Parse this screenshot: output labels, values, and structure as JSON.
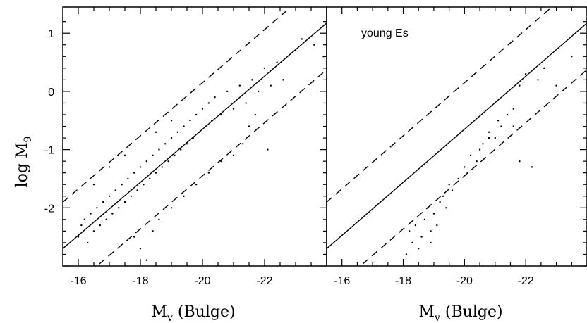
{
  "chart_data": [
    {
      "type": "scatter",
      "panel": "left",
      "xlabel_main": "M",
      "xlabel_sub": "v",
      "xlabel_suffix": " (Bulge)",
      "ylabel_main": "log  M",
      "ylabel_sub": "9",
      "xlim": [
        -15.5,
        -24.0
      ],
      "ylim": [
        -3.0,
        1.45
      ],
      "x_ticks": [
        -16,
        -18,
        -20,
        -22
      ],
      "x_tick_labels": [
        "-16",
        "-18",
        "-20",
        "-22"
      ],
      "y_ticks": [
        1,
        0,
        -1,
        -2
      ],
      "y_tick_labels": [
        "1",
        "0",
        "-1",
        "-2"
      ],
      "fit_line": {
        "slope": -0.456,
        "intercept": -9.77
      },
      "envelope_offset": 0.8,
      "series": [
        {
          "values": [
            {
              "x": -16.0,
              "y": -2.5
            },
            {
              "x": -16.1,
              "y": -2.3
            },
            {
              "x": -16.2,
              "y": -2.2
            },
            {
              "x": -16.3,
              "y": -2.6
            },
            {
              "x": -16.4,
              "y": -2.1
            },
            {
              "x": -16.5,
              "y": -2.4
            },
            {
              "x": -16.6,
              "y": -2.0
            },
            {
              "x": -16.7,
              "y": -2.3
            },
            {
              "x": -16.8,
              "y": -1.9
            },
            {
              "x": -16.9,
              "y": -2.2
            },
            {
              "x": -17.0,
              "y": -1.8
            },
            {
              "x": -17.1,
              "y": -2.1
            },
            {
              "x": -17.2,
              "y": -1.7
            },
            {
              "x": -17.3,
              "y": -2.0
            },
            {
              "x": -17.4,
              "y": -1.6
            },
            {
              "x": -17.5,
              "y": -1.9
            },
            {
              "x": -17.6,
              "y": -1.5
            },
            {
              "x": -17.7,
              "y": -1.8
            },
            {
              "x": -17.8,
              "y": -1.4
            },
            {
              "x": -17.9,
              "y": -1.7
            },
            {
              "x": -18.0,
              "y": -1.3
            },
            {
              "x": -18.1,
              "y": -1.6
            },
            {
              "x": -18.2,
              "y": -1.2
            },
            {
              "x": -18.3,
              "y": -1.5
            },
            {
              "x": -18.4,
              "y": -1.1
            },
            {
              "x": -18.5,
              "y": -1.4
            },
            {
              "x": -18.6,
              "y": -1.0
            },
            {
              "x": -18.7,
              "y": -1.3
            },
            {
              "x": -18.8,
              "y": -0.9
            },
            {
              "x": -18.9,
              "y": -1.2
            },
            {
              "x": -19.0,
              "y": -0.8
            },
            {
              "x": -19.1,
              "y": -1.1
            },
            {
              "x": -19.2,
              "y": -0.7
            },
            {
              "x": -19.3,
              "y": -1.0
            },
            {
              "x": -19.4,
              "y": -0.6
            },
            {
              "x": -19.5,
              "y": -0.9
            },
            {
              "x": -19.6,
              "y": -0.5
            },
            {
              "x": -19.7,
              "y": -0.8
            },
            {
              "x": -19.8,
              "y": -0.4
            },
            {
              "x": -19.9,
              "y": -0.7
            },
            {
              "x": -20.0,
              "y": -0.3
            },
            {
              "x": -20.1,
              "y": -0.6
            },
            {
              "x": -20.2,
              "y": -0.2
            },
            {
              "x": -20.3,
              "y": -0.5
            },
            {
              "x": -20.4,
              "y": -0.1
            },
            {
              "x": -20.6,
              "y": -0.4
            },
            {
              "x": -20.8,
              "y": 0.0
            },
            {
              "x": -21.0,
              "y": -0.3
            },
            {
              "x": -21.2,
              "y": 0.1
            },
            {
              "x": -21.4,
              "y": -0.2
            },
            {
              "x": -21.6,
              "y": 0.2
            },
            {
              "x": -21.8,
              "y": 0.0
            },
            {
              "x": -22.0,
              "y": 0.4
            },
            {
              "x": -22.2,
              "y": 0.1
            },
            {
              "x": -22.4,
              "y": 0.5
            },
            {
              "x": -22.6,
              "y": 0.2
            },
            {
              "x": -23.0,
              "y": 0.7
            },
            {
              "x": -23.2,
              "y": 0.9
            },
            {
              "x": -23.6,
              "y": 0.8
            },
            {
              "x": -23.9,
              "y": 0.6
            },
            {
              "x": -17.8,
              "y": -2.5
            },
            {
              "x": -18.0,
              "y": -2.7
            },
            {
              "x": -18.2,
              "y": -2.9
            },
            {
              "x": -18.4,
              "y": -2.4
            },
            {
              "x": -18.6,
              "y": -2.2
            },
            {
              "x": -19.0,
              "y": -2.0
            },
            {
              "x": -19.4,
              "y": -1.8
            },
            {
              "x": -19.8,
              "y": -1.6
            },
            {
              "x": -20.2,
              "y": -1.4
            },
            {
              "x": -20.6,
              "y": -1.2
            },
            {
              "x": -21.0,
              "y": -1.1
            },
            {
              "x": -22.1,
              "y": -1.0
            },
            {
              "x": -21.3,
              "y": -0.9
            },
            {
              "x": -21.5,
              "y": -0.6
            },
            {
              "x": -21.7,
              "y": -0.4
            },
            {
              "x": -19.0,
              "y": -0.5
            },
            {
              "x": -18.5,
              "y": -0.7
            },
            {
              "x": -17.5,
              "y": -1.1
            },
            {
              "x": -17.0,
              "y": -1.3
            },
            {
              "x": -16.5,
              "y": -1.6
            }
          ]
        }
      ]
    },
    {
      "type": "scatter",
      "panel": "right",
      "annotation": "young Es",
      "xlabel_main": "M",
      "xlabel_sub": "v",
      "xlabel_suffix": " (Bulge)",
      "xlim": [
        -15.5,
        -24.0
      ],
      "ylim": [
        -3.0,
        1.45
      ],
      "x_ticks": [
        -16,
        -18,
        -20,
        -22
      ],
      "x_tick_labels": [
        "-16",
        "-18",
        "-20",
        "-22"
      ],
      "y_ticks": [
        1,
        0,
        -1,
        -2
      ],
      "fit_line": {
        "slope": -0.456,
        "intercept": -9.77
      },
      "envelope_offset": 0.8,
      "series": [
        {
          "values": [
            {
              "x": -18.2,
              "y": -2.4
            },
            {
              "x": -18.3,
              "y": -2.6
            },
            {
              "x": -18.4,
              "y": -2.3
            },
            {
              "x": -18.5,
              "y": -2.7
            },
            {
              "x": -18.6,
              "y": -2.5
            },
            {
              "x": -18.7,
              "y": -2.2
            },
            {
              "x": -18.8,
              "y": -2.0
            },
            {
              "x": -18.9,
              "y": -2.4
            },
            {
              "x": -19.0,
              "y": -2.1
            },
            {
              "x": -19.2,
              "y": -1.9
            },
            {
              "x": -19.4,
              "y": -2.0
            },
            {
              "x": -19.6,
              "y": -1.7
            },
            {
              "x": -19.8,
              "y": -1.5
            },
            {
              "x": -20.0,
              "y": -1.3
            },
            {
              "x": -20.2,
              "y": -1.1
            },
            {
              "x": -20.4,
              "y": -1.2
            },
            {
              "x": -20.6,
              "y": -0.9
            },
            {
              "x": -20.8,
              "y": -0.7
            },
            {
              "x": -21.0,
              "y": -0.8
            },
            {
              "x": -21.2,
              "y": -0.6
            },
            {
              "x": -21.4,
              "y": -0.4
            },
            {
              "x": -21.6,
              "y": -0.3
            },
            {
              "x": -21.8,
              "y": 0.1
            },
            {
              "x": -22.0,
              "y": 0.3
            },
            {
              "x": -22.4,
              "y": 0.2
            },
            {
              "x": -22.6,
              "y": 0.4
            },
            {
              "x": -23.0,
              "y": 0.1
            },
            {
              "x": -23.5,
              "y": 0.6
            },
            {
              "x": -19.5,
              "y": -1.6
            },
            {
              "x": -19.3,
              "y": -1.8
            },
            {
              "x": -21.8,
              "y": -1.2
            },
            {
              "x": -22.2,
              "y": -1.3
            },
            {
              "x": -20.8,
              "y": -0.8
            },
            {
              "x": -21.1,
              "y": -0.5
            },
            {
              "x": -20.5,
              "y": -1.0
            },
            {
              "x": -18.1,
              "y": -2.8
            },
            {
              "x": -18.9,
              "y": -2.6
            },
            {
              "x": -19.1,
              "y": -2.3
            },
            {
              "x": -20.1,
              "y": -1.4
            },
            {
              "x": -21.6,
              "y": -0.6
            }
          ]
        }
      ]
    }
  ]
}
